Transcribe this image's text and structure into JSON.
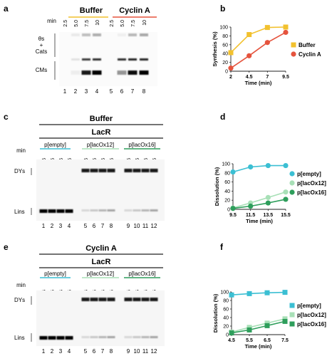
{
  "panel_a": {
    "letter": "a",
    "min_label": "min",
    "group_labels": [
      "Buffer",
      "Cyclin A"
    ],
    "group_colors": [
      "#f2c12e",
      "#e5533d"
    ],
    "time_labels": [
      "2.5",
      "5.0",
      "7.5",
      "10",
      "2.5",
      "5.0",
      "7.5",
      "10"
    ],
    "lane_numbers": [
      "1",
      "2",
      "3",
      "4",
      "5",
      "6",
      "7",
      "8"
    ],
    "band_labels": [
      "θs",
      "+",
      "Cats",
      "CMs"
    ]
  },
  "panel_c": {
    "letter": "c",
    "condition": "Buffer",
    "protein": "LacR",
    "construct_labels": [
      "p[empty]",
      "p[lacOx12]",
      "p[lacOx16]"
    ],
    "construct_colors": [
      "#3bbfd3",
      "#a8e0b7",
      "#2e9e5b"
    ],
    "min_label": "min",
    "time_labels": [
      "9.5",
      "11.5",
      "13.5",
      "15.5",
      "9.5",
      "11.5",
      "13.5",
      "15.5",
      "9.5",
      "11.5",
      "13.5",
      "15.5"
    ],
    "band_labels": [
      "DYs",
      "Lins"
    ],
    "lane_numbers": [
      "1",
      "2",
      "3",
      "4",
      "5",
      "6",
      "7",
      "8",
      "9",
      "10",
      "11",
      "12"
    ]
  },
  "panel_e": {
    "letter": "e",
    "condition": "Cyclin A",
    "protein": "LacR",
    "construct_labels": [
      "p[empty]",
      "p[lacOx12]",
      "p[lacOx16]"
    ],
    "construct_colors": [
      "#3bbfd3",
      "#a8e0b7",
      "#2e9e5b"
    ],
    "min_label": "min",
    "time_labels": [
      "4.5",
      "5.5",
      "6.5",
      "7.5",
      "4.5",
      "5.5",
      "6.5",
      "7.5",
      "4.5",
      "5.5",
      "6.5",
      "7.5"
    ],
    "band_labels": [
      "DYs",
      "Lins"
    ],
    "lane_numbers": [
      "1",
      "2",
      "3",
      "4",
      "5",
      "6",
      "7",
      "8",
      "9",
      "10",
      "11",
      "12"
    ]
  },
  "chart_data": [
    {
      "panel": "b",
      "type": "line",
      "xlabel": "Time (min)",
      "ylabel": "Synthesis (%)",
      "xticks": [
        "2",
        "4.5",
        "7",
        "9.5"
      ],
      "yticks": [
        "0",
        "20",
        "40",
        "60",
        "80",
        "100"
      ],
      "xlim": [
        2,
        9.5
      ],
      "ylim": [
        0,
        100
      ],
      "marker": "square-circle",
      "series": [
        {
          "name": "Buffer",
          "color": "#f2c12e",
          "marker": "square",
          "x": [
            2,
            4.5,
            7,
            9.5
          ],
          "y": [
            42,
            83,
            99,
            100
          ]
        },
        {
          "name": "Cyclin A",
          "color": "#e5533d",
          "marker": "circle",
          "x": [
            2,
            4.5,
            7,
            9.5
          ],
          "y": [
            7,
            35,
            65,
            88
          ]
        }
      ]
    },
    {
      "panel": "d",
      "type": "line",
      "xlabel": "Time (min)",
      "ylabel": "Dissolution (%)",
      "xticks": [
        "9.5",
        "11.5",
        "13.5",
        "15.5"
      ],
      "yticks": [
        "0",
        "20",
        "40",
        "60",
        "80",
        "100"
      ],
      "xlim": [
        9.5,
        15.5
      ],
      "ylim": [
        0,
        100
      ],
      "series": [
        {
          "name": "p[empty]",
          "color": "#3bbfd3",
          "marker": "circle",
          "x": [
            9.5,
            11.5,
            13.5,
            15.5
          ],
          "y": [
            82,
            93,
            96,
            96
          ]
        },
        {
          "name": "p[lacOx12]",
          "color": "#a8e0b7",
          "marker": "circle",
          "x": [
            9.5,
            11.5,
            13.5,
            15.5
          ],
          "y": [
            3,
            14,
            26,
            38
          ]
        },
        {
          "name": "p[lacOx16]",
          "color": "#2e9e5b",
          "marker": "circle",
          "x": [
            9.5,
            11.5,
            13.5,
            15.5
          ],
          "y": [
            2,
            7,
            14,
            22
          ]
        }
      ]
    },
    {
      "panel": "f",
      "type": "line",
      "xlabel": "Time (min)",
      "ylabel": "Dissolution (%)",
      "xticks": [
        "4.5",
        "5.5",
        "6.5",
        "7.5"
      ],
      "yticks": [
        "0",
        "20",
        "40",
        "60",
        "80",
        "100"
      ],
      "xlim": [
        4.5,
        7.5
      ],
      "ylim": [
        0,
        100
      ],
      "series": [
        {
          "name": "p[empty]",
          "color": "#3bbfd3",
          "marker": "square",
          "x": [
            4.5,
            5.5,
            6.5,
            7.5
          ],
          "y": [
            93,
            96,
            98,
            99
          ]
        },
        {
          "name": "p[lacOx12]",
          "color": "#a8e0b7",
          "marker": "square",
          "x": [
            4.5,
            5.5,
            6.5,
            7.5
          ],
          "y": [
            6,
            17,
            27,
            37
          ]
        },
        {
          "name": "p[lacOx16]",
          "color": "#2e9e5b",
          "marker": "square",
          "x": [
            4.5,
            5.5,
            6.5,
            7.5
          ],
          "y": [
            4,
            11,
            21,
            31
          ]
        }
      ]
    }
  ]
}
